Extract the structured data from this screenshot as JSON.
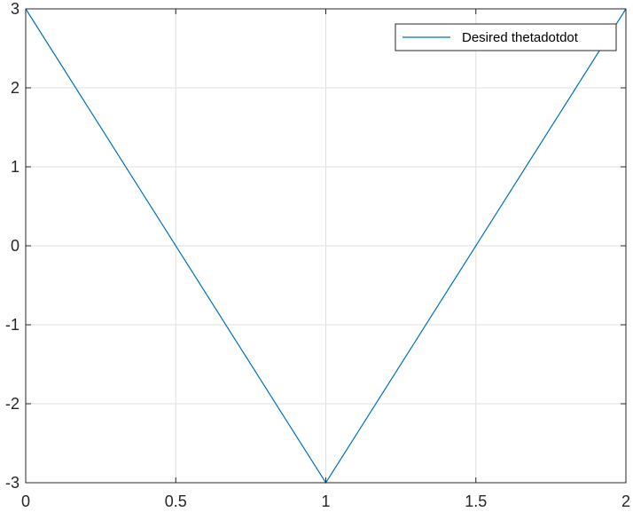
{
  "chart_data": {
    "type": "line",
    "title": "",
    "xlabel": "",
    "ylabel": "",
    "xlim": [
      0,
      2
    ],
    "ylim": [
      -3,
      3
    ],
    "xticks": [
      0,
      0.5,
      1,
      1.5,
      2
    ],
    "xtick_labels": [
      "0",
      "0.5",
      "1",
      "1.5",
      "2"
    ],
    "yticks": [
      -3,
      -2,
      -1,
      0,
      1,
      2,
      3
    ],
    "ytick_labels": [
      "-3",
      "-2",
      "-1",
      "0",
      "1",
      "2",
      "3"
    ],
    "grid": true,
    "legend_position": "top-right",
    "series": [
      {
        "name": "Desired thetadotdot",
        "color": "#0072BD",
        "x": [
          0,
          1,
          2
        ],
        "y": [
          3,
          -3,
          3
        ]
      }
    ]
  }
}
